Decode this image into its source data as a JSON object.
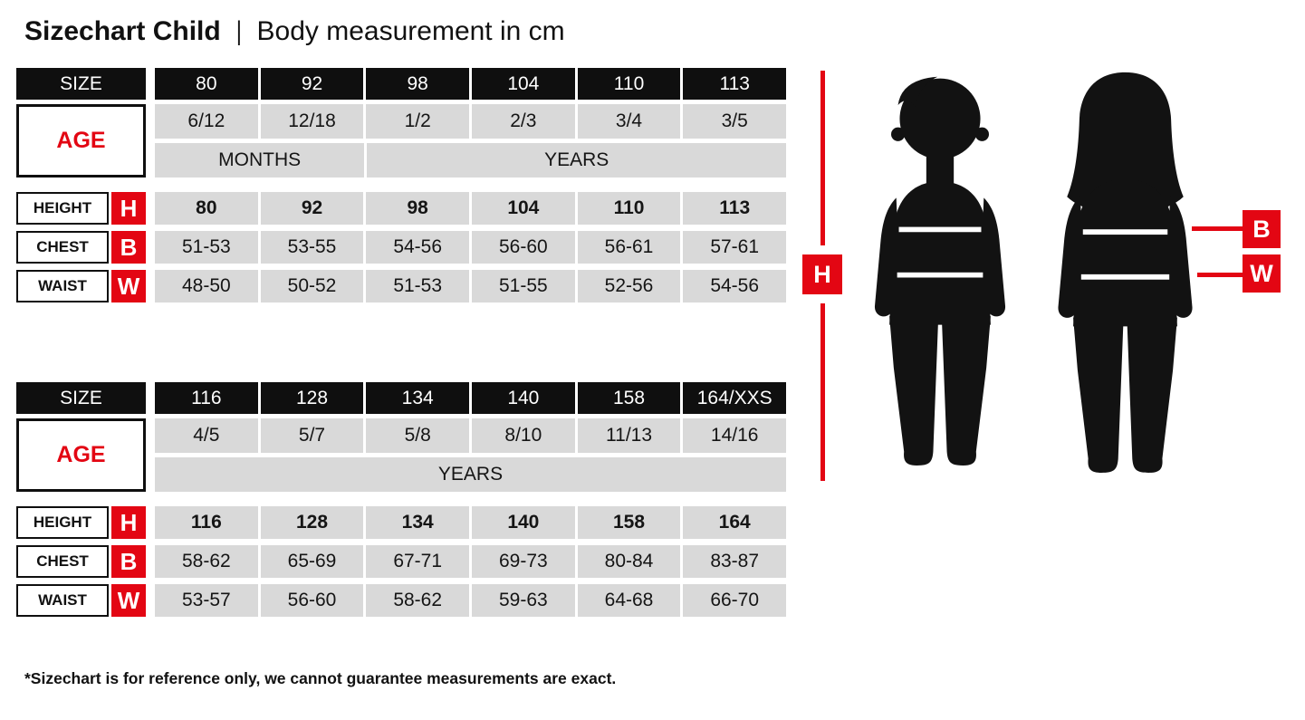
{
  "header": {
    "title": "Sizechart Child",
    "separator": "|",
    "subtitle": "Body measurement in cm"
  },
  "tables": [
    {
      "size_label": "SIZE",
      "age_label": "AGE",
      "sizes": [
        "80",
        "92",
        "98",
        "104",
        "110",
        "113"
      ],
      "ages": [
        "6/12",
        "12/18",
        "1/2",
        "2/3",
        "3/4",
        "3/5"
      ],
      "periods": [
        {
          "label": "MONTHS",
          "span": 2
        },
        {
          "label": "YEARS",
          "span": 4
        }
      ],
      "rows": [
        {
          "label": "HEIGHT",
          "letter": "H",
          "bold": true,
          "values": [
            "80",
            "92",
            "98",
            "104",
            "110",
            "113"
          ]
        },
        {
          "label": "CHEST",
          "letter": "B",
          "bold": false,
          "values": [
            "51-53",
            "53-55",
            "54-56",
            "56-60",
            "56-61",
            "57-61"
          ]
        },
        {
          "label": "WAIST",
          "letter": "W",
          "bold": false,
          "values": [
            "48-50",
            "50-52",
            "51-53",
            "51-55",
            "52-56",
            "54-56"
          ]
        }
      ]
    },
    {
      "size_label": "SIZE",
      "age_label": "AGE",
      "sizes": [
        "116",
        "128",
        "134",
        "140",
        "158",
        "164/XXS"
      ],
      "ages": [
        "4/5",
        "5/7",
        "5/8",
        "8/10",
        "11/13",
        "14/16"
      ],
      "periods": [
        {
          "label": "YEARS",
          "span": 6
        }
      ],
      "rows": [
        {
          "label": "HEIGHT",
          "letter": "H",
          "bold": true,
          "values": [
            "116",
            "128",
            "134",
            "140",
            "158",
            "164"
          ]
        },
        {
          "label": "CHEST",
          "letter": "B",
          "bold": false,
          "values": [
            "58-62",
            "65-69",
            "67-71",
            "69-73",
            "80-84",
            "83-87"
          ]
        },
        {
          "label": "WAIST",
          "letter": "W",
          "bold": false,
          "values": [
            "53-57",
            "56-60",
            "58-62",
            "59-63",
            "64-68",
            "66-70"
          ]
        }
      ]
    }
  ],
  "figure": {
    "icons": [
      "boy-silhouette",
      "girl-silhouette"
    ],
    "height_letter": "H",
    "chest_letter": "B",
    "waist_letter": "W"
  },
  "footer": {
    "note": "*Sizechart is for reference only, we cannot guarantee measurements are exact."
  },
  "colors": {
    "red": "#e30613",
    "black": "#0f0f0f",
    "cell_gray": "#d9d9d9"
  }
}
